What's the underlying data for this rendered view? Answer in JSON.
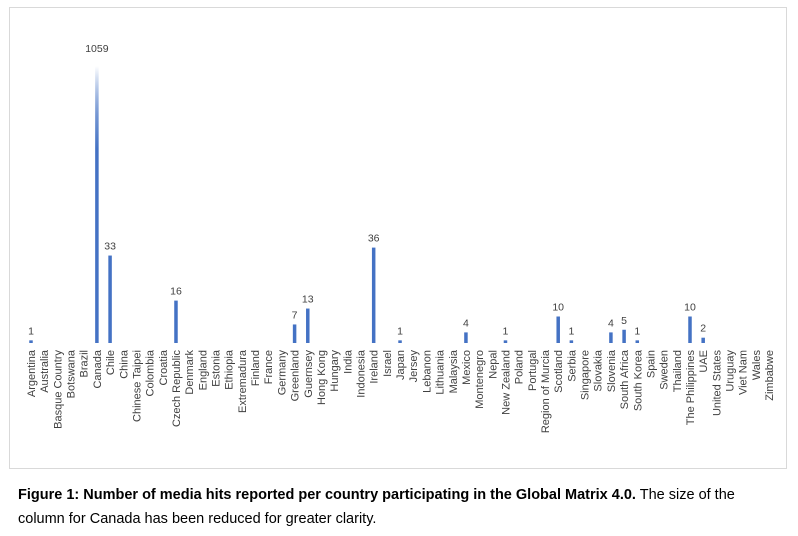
{
  "chart_data": {
    "type": "bar",
    "title": "",
    "xlabel": "",
    "ylabel": "",
    "bar_color": "#4472c4",
    "canada_bar_gradient": true,
    "grid": false,
    "legend": "none",
    "categories": [
      "Argentina",
      "Australia",
      "Basque Country",
      "Botswana",
      "Brazil",
      "Canada",
      "Chile",
      "China",
      "Chinese Taipei",
      "Colombia",
      "Croatia",
      "Czech Republic",
      "Denmark",
      "England",
      "Estonia",
      "Ethiopia",
      "Extremadura",
      "Finland",
      "France",
      "Germany",
      "Greenland",
      "Guernsey",
      "Hong Kong",
      "Hungary",
      "India",
      "Indonesia",
      "Ireland",
      "Israel",
      "Japan",
      "Jersey",
      "Lebanon",
      "Lithuania",
      "Malaysia",
      "Mexico",
      "Montenegro",
      "Nepal",
      "New Zealand",
      "Poland",
      "Portugal",
      "Region of Murcia",
      "Scotland",
      "Serbia",
      "Singapore",
      "Slovakia",
      "Slovenia",
      "South Africa",
      "South Korea",
      "Spain",
      "Sweden",
      "Thailand",
      "The Philippines",
      "UAE",
      "United States",
      "Uruguay",
      "Viet Nam",
      "Wales",
      "Zimbabwe"
    ],
    "values": [
      1,
      null,
      null,
      null,
      null,
      1059,
      33,
      null,
      null,
      null,
      null,
      16,
      null,
      null,
      null,
      null,
      null,
      null,
      null,
      null,
      7,
      13,
      null,
      null,
      null,
      null,
      36,
      null,
      1,
      null,
      null,
      null,
      null,
      4,
      null,
      null,
      1,
      null,
      null,
      null,
      10,
      1,
      null,
      null,
      4,
      5,
      1,
      null,
      null,
      null,
      10,
      2,
      null,
      null,
      null,
      null,
      null
    ],
    "data_labels": [
      "1",
      "",
      "",
      "",
      "",
      "1059",
      "33",
      "",
      "",
      "",
      "",
      "16",
      "",
      "",
      "",
      "",
      "",
      "",
      "",
      "",
      "7",
      "13",
      "",
      "",
      "",
      "",
      "36",
      "",
      "1",
      "",
      "",
      "",
      "",
      "4",
      "",
      "",
      "1",
      "",
      "",
      "",
      "10",
      "1",
      "",
      "",
      "4",
      "5",
      "1",
      "",
      "",
      "",
      "10",
      "2",
      "",
      "",
      "",
      "",
      ""
    ]
  },
  "caption": {
    "bold": "Figure 1: Number of media hits reported per country participating in the Global Matrix 4.0.",
    "rest": " The size of the column for Canada has been reduced for greater clarity."
  }
}
